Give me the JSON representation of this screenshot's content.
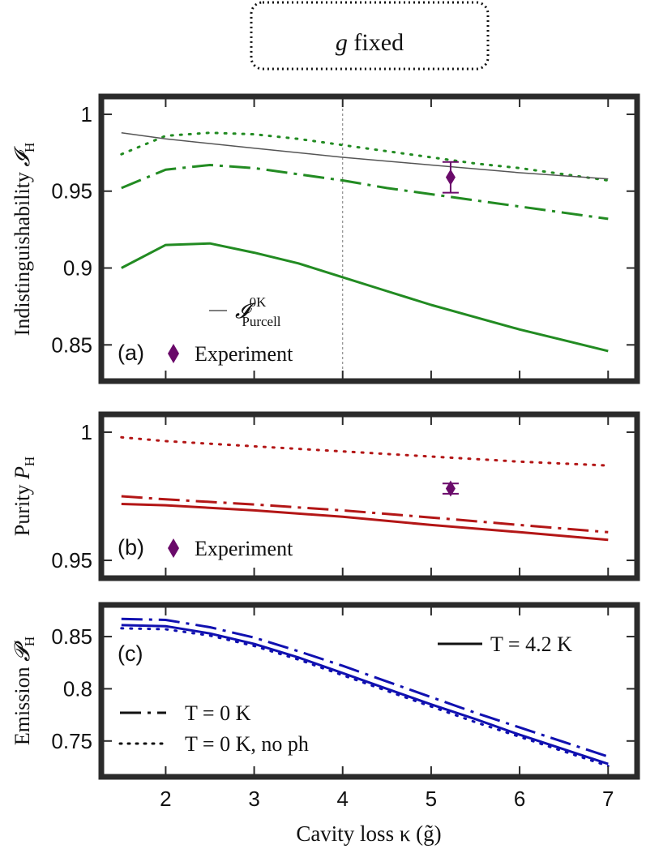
{
  "header": {
    "title_italic": "g",
    "title_rest": " fixed"
  },
  "x_axis": {
    "label": "Cavity loss κ (g̃)",
    "ticks": [
      "2",
      "3",
      "4",
      "5",
      "6",
      "7"
    ],
    "tick_values": [
      2,
      3,
      4,
      5,
      6,
      7
    ],
    "xlim": [
      1.3,
      7.3
    ]
  },
  "chart_data": [
    {
      "type": "line",
      "panel": "(a)",
      "ylabel": "Indistinguishability 𝓘H",
      "ylim": [
        0.828,
        1.01
      ],
      "yticks": [
        0.85,
        0.9,
        0.95,
        1
      ],
      "ytick_labels": [
        "0.85",
        "0.9",
        "0.95",
        "1"
      ],
      "vline_x": 4,
      "series": [
        {
          "style": "solid",
          "color": "#228b22",
          "x": [
            1.5,
            2,
            2.5,
            3,
            3.5,
            4,
            4.5,
            5,
            5.5,
            6,
            6.5,
            7
          ],
          "y": [
            0.9,
            0.915,
            0.916,
            0.91,
            0.903,
            0.894,
            0.885,
            0.876,
            0.868,
            0.86,
            0.853,
            0.846
          ]
        },
        {
          "style": "dashdot",
          "color": "#228b22",
          "x": [
            1.5,
            2,
            2.5,
            3,
            3.5,
            4,
            4.5,
            5,
            5.5,
            6,
            6.5,
            7
          ],
          "y": [
            0.952,
            0.964,
            0.967,
            0.965,
            0.961,
            0.957,
            0.952,
            0.948,
            0.944,
            0.94,
            0.936,
            0.932
          ]
        },
        {
          "style": "dotted",
          "color": "#228b22",
          "x": [
            1.5,
            2,
            2.5,
            3,
            3.5,
            4,
            4.5,
            5,
            5.5,
            6,
            6.5,
            7
          ],
          "y": [
            0.974,
            0.986,
            0.988,
            0.987,
            0.984,
            0.98,
            0.976,
            0.972,
            0.968,
            0.965,
            0.961,
            0.957
          ]
        },
        {
          "style": "thin",
          "color": "#555555",
          "x": [
            1.5,
            2,
            3,
            4,
            5,
            6,
            7
          ],
          "y": [
            0.988,
            0.984,
            0.978,
            0.972,
            0.967,
            0.962,
            0.958
          ]
        }
      ],
      "experiment": {
        "x": 5.22,
        "y": 0.959,
        "err": 0.01,
        "color": "#6a0a6a"
      },
      "legend": {
        "line_main": "𝓘",
        "line_sup": "0K",
        "line_sub": "Purcell",
        "marker_label": "Experiment"
      }
    },
    {
      "type": "line",
      "panel": "(b)",
      "ylabel": "Purity PH",
      "ylim": [
        0.944,
        1.006
      ],
      "yticks": [
        0.95,
        1
      ],
      "ytick_labels": [
        "0.95",
        "1"
      ],
      "series": [
        {
          "style": "solid",
          "color": "#b31616",
          "x": [
            1.5,
            2,
            3,
            4,
            5,
            6,
            7
          ],
          "y": [
            0.972,
            0.9715,
            0.9695,
            0.967,
            0.9638,
            0.961,
            0.958
          ]
        },
        {
          "style": "dashdot",
          "color": "#b31616",
          "x": [
            1.5,
            2,
            3,
            4,
            5,
            6,
            7
          ],
          "y": [
            0.975,
            0.9738,
            0.9718,
            0.9695,
            0.9667,
            0.9638,
            0.961
          ]
        },
        {
          "style": "dotted",
          "color": "#b31616",
          "x": [
            1.5,
            2,
            3,
            4,
            5,
            6,
            7
          ],
          "y": [
            0.998,
            0.9965,
            0.9945,
            0.9925,
            0.9905,
            0.9885,
            0.987
          ]
        }
      ],
      "experiment": {
        "x": 5.22,
        "y": 0.978,
        "err": 0.002,
        "color": "#6a0a6a"
      },
      "legend": {
        "marker_label": "Experiment"
      }
    },
    {
      "type": "line",
      "panel": "(c)",
      "ylabel": "Emission 𝓟H",
      "ylim": [
        0.718,
        0.878
      ],
      "yticks": [
        0.75,
        0.8,
        0.85
      ],
      "ytick_labels": [
        "0.75",
        "0.8",
        "0.85"
      ],
      "series": [
        {
          "style": "solid",
          "color": "#1010b0",
          "x": [
            1.5,
            2,
            2.5,
            3,
            3.5,
            4,
            4.5,
            5,
            5.5,
            6,
            6.5,
            7
          ],
          "y": [
            0.861,
            0.86,
            0.853,
            0.843,
            0.83,
            0.815,
            0.8,
            0.785,
            0.771,
            0.756,
            0.742,
            0.728
          ]
        },
        {
          "style": "dashdot",
          "color": "#1010b0",
          "x": [
            1.5,
            2,
            2.5,
            3,
            3.5,
            4,
            4.5,
            5,
            5.5,
            6,
            6.5,
            7
          ],
          "y": [
            0.867,
            0.866,
            0.859,
            0.849,
            0.836,
            0.822,
            0.807,
            0.792,
            0.777,
            0.763,
            0.749,
            0.735
          ]
        },
        {
          "style": "dotted",
          "color": "#1010b0",
          "x": [
            1.5,
            2,
            2.5,
            3,
            3.5,
            4,
            4.5,
            5,
            5.5,
            6,
            6.5,
            7
          ],
          "y": [
            0.858,
            0.857,
            0.851,
            0.841,
            0.828,
            0.813,
            0.798,
            0.783,
            0.768,
            0.754,
            0.74,
            0.726
          ]
        }
      ],
      "legend": {
        "solid_label": "T = 4.2 K",
        "dashdot_label": "T = 0 K",
        "dotted_label": "T = 0 K, no ph"
      }
    }
  ]
}
